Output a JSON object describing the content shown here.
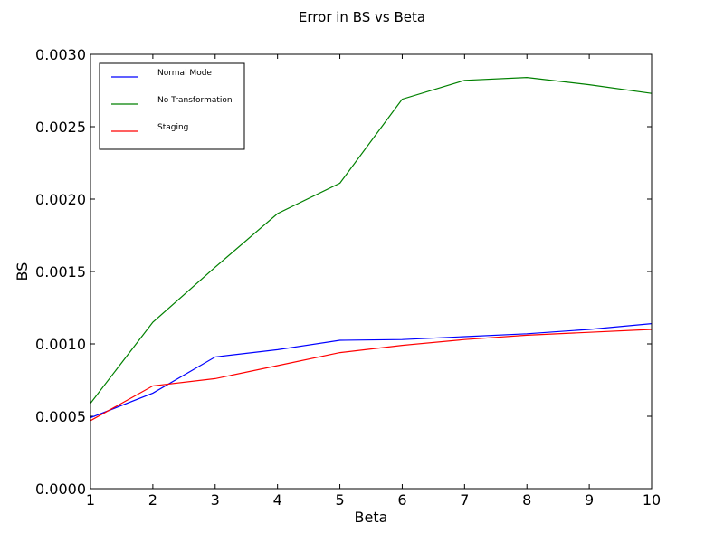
{
  "chart_data": {
    "type": "line",
    "title": "Error in BS vs Beta",
    "xlabel": "Beta",
    "ylabel": "BS",
    "xlim": [
      1,
      10
    ],
    "ylim": [
      0,
      0.003
    ],
    "x": [
      1,
      2,
      3,
      4,
      5,
      6,
      7,
      8,
      9,
      10
    ],
    "x_ticks": [
      "1",
      "2",
      "3",
      "4",
      "5",
      "6",
      "7",
      "8",
      "9",
      "10"
    ],
    "y_tick_values": [
      0,
      0.0005,
      0.001,
      0.0015,
      0.002,
      0.0025,
      0.003
    ],
    "y_ticks": [
      "0.0000",
      "0.0005",
      "0.0010",
      "0.0015",
      "0.0020",
      "0.0025",
      "0.0030"
    ],
    "grid": false,
    "legend_position": "top-left",
    "series": [
      {
        "name": "Normal Mode",
        "color": "#0000ff",
        "values": [
          0.00049,
          0.00066,
          0.00091,
          0.00096,
          0.001025,
          0.00103,
          0.00105,
          0.00107,
          0.0011,
          0.00114
        ]
      },
      {
        "name": "No Transformation",
        "color": "#008000",
        "values": [
          0.00059,
          0.00115,
          0.00153,
          0.0019,
          0.00211,
          0.00269,
          0.00282,
          0.00284,
          0.00279,
          0.00273
        ]
      },
      {
        "name": "Staging",
        "color": "#ff0000",
        "values": [
          0.00047,
          0.00071,
          0.00076,
          0.00085,
          0.00094,
          0.00099,
          0.00103,
          0.00106,
          0.00108,
          0.0011
        ]
      }
    ]
  }
}
